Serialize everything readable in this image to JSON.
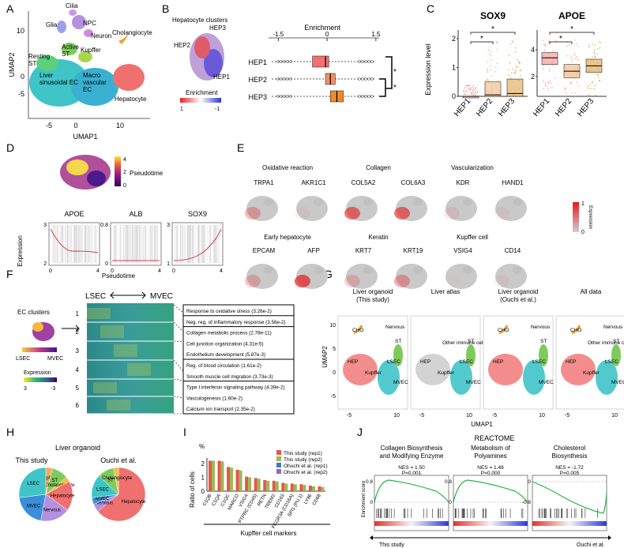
{
  "panel_letters": [
    "A",
    "B",
    "C",
    "D",
    "E",
    "F",
    "G",
    "H",
    "I",
    "J"
  ],
  "a": {
    "xlabel": "UMAP1",
    "ylabel": "UMAP2",
    "yticks": [
      "10",
      "0",
      "-5"
    ],
    "xticks": [
      "-5",
      "0",
      "10"
    ],
    "clusters": [
      "Cilia",
      "NPC",
      "Glia",
      "Neuron",
      "Cholangiocyte",
      "Active ST",
      "Kupffer",
      "Resting ST",
      "Liver sinusoidal EC",
      "Macro vascular EC",
      "Hepatocyte"
    ]
  },
  "b": {
    "title": "Hepatocyte clusters",
    "umap_labels": [
      "HEP3",
      "HEP2",
      "HEP1"
    ],
    "legend_title": "Enrichment",
    "legend_min": "1",
    "legend_max": "-1",
    "chart_data": {
      "type": "boxplot",
      "title": "Enrichment",
      "categories": [
        "HEP1",
        "HEP2",
        "HEP3"
      ],
      "xticks": [
        "-1.5",
        "0",
        "1.5"
      ],
      "xlim": [
        -1.8,
        1.6
      ],
      "boxes": [
        {
          "name": "HEP1",
          "q1": -0.45,
          "median": -0.05,
          "q3": 0.05,
          "color": "#f07070"
        },
        {
          "name": "HEP2",
          "q1": -0.05,
          "median": 0.1,
          "q3": 0.25,
          "color": "#f09060"
        },
        {
          "name": "HEP3",
          "q1": 0.1,
          "median": 0.3,
          "q3": 0.5,
          "color": "#ee8a2a"
        }
      ],
      "significance": [
        "*",
        "*"
      ]
    }
  },
  "c": {
    "ylabel": "Expression level",
    "chart_data": [
      {
        "type": "boxplot",
        "title": "SOX9",
        "categories": [
          "HEP1",
          "HEP2",
          "HEP3"
        ],
        "yticks": [
          "0",
          "1",
          "2"
        ],
        "ylim": [
          0,
          2.3
        ],
        "boxes": [
          {
            "q1": 0,
            "median": 0,
            "q3": 0,
            "color": "#f7b8b0"
          },
          {
            "q1": 0,
            "median": 0.05,
            "q3": 0.5,
            "color": "#f2c49a"
          },
          {
            "q1": 0,
            "median": 0.1,
            "q3": 0.6,
            "color": "#e7b574"
          }
        ],
        "significance": [
          "*",
          "*"
        ]
      },
      {
        "type": "boxplot",
        "title": "APOE",
        "categories": [
          "HEP1",
          "HEP2",
          "HEP3"
        ],
        "yticks": [
          "2",
          "4"
        ],
        "ylim": [
          0.5,
          5.5
        ],
        "boxes": [
          {
            "q1": 2.9,
            "median": 3.4,
            "q3": 3.8,
            "color": "#f7a6a0"
          },
          {
            "q1": 1.9,
            "median": 2.4,
            "q3": 2.9,
            "color": "#f0c090"
          },
          {
            "q1": 2.3,
            "median": 2.8,
            "q3": 3.3,
            "color": "#e4b06a"
          }
        ],
        "significance": [
          "*",
          "*"
        ]
      }
    ]
  },
  "d": {
    "legend_title": "Pseudotime",
    "legend_ticks": [
      "4",
      "2",
      "0"
    ],
    "ylabel": "Expression",
    "xlabel": "Pseudotime",
    "genes": [
      {
        "name": "APOE",
        "yticks": [
          "3",
          "2"
        ],
        "xticks": [
          "0",
          "4"
        ]
      },
      {
        "name": "ALB",
        "yticks": [
          "0.8",
          "0"
        ],
        "xticks": [
          "0",
          "4"
        ]
      },
      {
        "name": "SOX9",
        "yticks": [
          "3",
          "1"
        ],
        "xticks": [
          "0",
          "4"
        ]
      }
    ]
  },
  "e": {
    "legend_title": "Expression",
    "legend_max": "1",
    "legend_min": "0",
    "row1_groups": [
      "Oxidative reaction",
      "Collagen",
      "Vascularization"
    ],
    "row1_genes": [
      "TRPA1",
      "AKR1C1",
      "COL5A2",
      "COL6A3",
      "KDR",
      "HAND1"
    ],
    "row2_groups": [
      "Early hepatocyte",
      "Keratin",
      "Kupffer cell"
    ],
    "row2_genes": [
      "EPCAM",
      "AFP",
      "KRT7",
      "KRT19",
      "VSIG4",
      "CD14"
    ]
  },
  "f": {
    "title": "EC clusters",
    "axis_left": "LSEC",
    "axis_right": "MVEC",
    "grad_left": "LSEC",
    "grad_right": "MVEC",
    "legend_title": "Expression",
    "legend_min": "3",
    "legend_max": "-3",
    "rows": [
      "1",
      "2",
      "3",
      "4",
      "5",
      "6"
    ],
    "terms": [
      "Response to oxidative stress (3.26e-2)",
      "Neg. reg. of inflammatory response (3.56e-2)",
      "Collagen metabolic process (2.78e-11)",
      "Cell junction organization (4.31e-5)",
      "Endothelium development (5.87e-3)",
      "Reg. of blood circulation (1.61e-2)",
      "Smooth muscle cell migration (3.73e-3)",
      "Type I interferon signaling pathway (4.39e-2)",
      "Vasculogenesis (1.60e-2)",
      "Calcium ion transport (2.35e-2)"
    ]
  },
  "g": {
    "ylabel": "UMAP2",
    "xlabel": "UMAP1",
    "yticks": [
      "10",
      "5",
      "0",
      "-5"
    ],
    "xticks": [
      "-5",
      "0",
      "5",
      "10"
    ],
    "panels": [
      {
        "title": "Liver organoid\n(This study)",
        "labels": [
          "CHO",
          "Nervous",
          "ST",
          "HEP",
          "Kupffer",
          "LSEC",
          "MVEC"
        ]
      },
      {
        "title": "Liver atlas",
        "labels": [
          "Other immune cell",
          "ST",
          "HEP",
          "Kupffer",
          "LSEC",
          "MVEC"
        ]
      },
      {
        "title": "Liver organoid\n(Ouchi et al.)",
        "labels": [
          "CHO",
          "Nervous",
          "ST",
          "HEP",
          "LSEC",
          "MVEC"
        ]
      },
      {
        "title": "All data",
        "labels": [
          "CHO",
          "Nervous",
          "Other immune cell",
          "ST",
          "HEP",
          "Kupffer",
          "LSEC",
          "MVEC"
        ]
      }
    ]
  },
  "h": {
    "title": "Liver organoid",
    "chart_data": [
      {
        "type": "pie",
        "title": "This study",
        "labels": [
          "Kupffer",
          "ST",
          "Cholangiocyte",
          "Hepatocyte",
          "Nervous",
          "MVEC",
          "LSEC"
        ],
        "values": [
          4,
          10,
          3,
          18,
          18,
          20,
          27
        ],
        "colors": [
          "#f4a85e",
          "#7ecb5c",
          "#f0c040",
          "#f07070",
          "#b58fe0",
          "#3a8fd8",
          "#3fc4c8"
        ]
      },
      {
        "type": "pie",
        "title": "Ouchi et al.",
        "labels": [
          "Hepatocyte",
          "Nervous",
          "MVEC",
          "LSEC",
          "ST",
          "Cholangiocyte"
        ],
        "values": [
          64,
          5,
          4,
          14,
          10,
          3
        ],
        "colors": [
          "#f07070",
          "#b58fe0",
          "#3a8fd8",
          "#3fc4c8",
          "#7ecb5c",
          "#f0c040"
        ]
      }
    ]
  },
  "i": {
    "unit": "%",
    "ylabel": "Ratio of cells",
    "xlabel": "Kupffer cell markers",
    "chart_data": {
      "type": "bar",
      "ylim": [
        0,
        2.4
      ],
      "yticks": [
        "0",
        "1",
        "2"
      ],
      "categories": [
        "C1QB",
        "C1QA",
        "C1QC",
        "MARCO",
        "VSIG4",
        "PTPRC (CD45)",
        "RETN",
        "TREM2",
        "CD163",
        "FCGR3A (CD16A)",
        "SPI1 (PU.1)",
        "LY86",
        "CD68"
      ],
      "series": [
        {
          "name": "This study (rep1)",
          "color": "#e2574c",
          "values": [
            2.2,
            2.2,
            1.75,
            1.55,
            1.05,
            0.95,
            0.8,
            0.75,
            0.6,
            0.55,
            0.5,
            0.4,
            0.35
          ]
        },
        {
          "name": "This study (rep2)",
          "color": "#9bb955",
          "values": [
            2.2,
            2.15,
            1.7,
            1.5,
            1.0,
            0.9,
            0.75,
            0.7,
            0.55,
            0.5,
            0.45,
            0.35,
            0.3
          ]
        },
        {
          "name": "Ohuchi et al. (rep1)",
          "color": "#4a78c2",
          "values": [
            0,
            0,
            0,
            0,
            0,
            0,
            0,
            0,
            0,
            0,
            0,
            0,
            0
          ]
        },
        {
          "name": "Ohuchi et al. (rep2)",
          "color": "#8e6bbf",
          "values": [
            0,
            0,
            0,
            0,
            0,
            0,
            0,
            0,
            0,
            0,
            0,
            0,
            0
          ]
        }
      ]
    }
  },
  "j": {
    "header": "REACTOME",
    "left_label": "This study",
    "right_label": "Ouchi et al.",
    "ylabel": "Enrichment score",
    "panels": [
      {
        "title": "Collagen Biosynthesis and Modifying Enzyme",
        "nes": "NES = 1.50",
        "p": "P=0.001",
        "yticks": [
          "0.8",
          "0"
        ]
      },
      {
        "title": "Metabolism of Polyamines",
        "nes": "NES = 1.48",
        "p": "P=0.000",
        "yticks": [
          "0.8",
          "0"
        ]
      },
      {
        "title": "Cholesterol Biosynthesis",
        "nes": "NES = -1.72",
        "p": "P=0.005",
        "yticks": [
          "0",
          "-0.8"
        ]
      }
    ]
  }
}
